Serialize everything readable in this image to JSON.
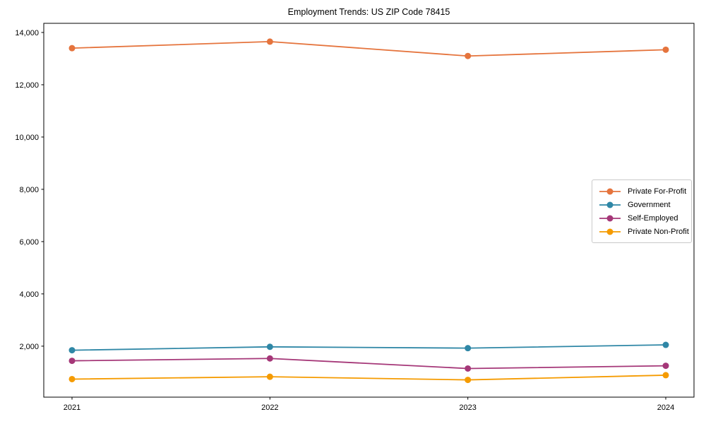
{
  "chart_data": {
    "type": "line",
    "title": "Employment Trends: US ZIP Code 78415",
    "xlabel": "",
    "ylabel": "",
    "categories": [
      "2021",
      "2022",
      "2023",
      "2024"
    ],
    "series": [
      {
        "name": "Private For-Profit",
        "color": "#E5743D",
        "values": [
          13400,
          13650,
          13100,
          13340
        ]
      },
      {
        "name": "Government",
        "color": "#2F87A6",
        "values": [
          1845,
          1975,
          1925,
          2050
        ]
      },
      {
        "name": "Self-Employed",
        "color": "#A53778",
        "values": [
          1440,
          1530,
          1145,
          1250
        ]
      },
      {
        "name": "Private Non-Profit",
        "color": "#F59B00",
        "values": [
          740,
          830,
          710,
          890
        ]
      }
    ],
    "ylim": [
      50,
      14350
    ],
    "yticks": [
      2000,
      4000,
      6000,
      8000,
      10000,
      12000,
      14000
    ],
    "ytick_labels": [
      "2,000",
      "4,000",
      "6,000",
      "8,000",
      "10,000",
      "12,000",
      "14,000"
    ],
    "xtick_labels": [
      "2021",
      "2022",
      "2023",
      "2024"
    ],
    "grid": false,
    "legend_position": "center right",
    "axis_color": "#000000"
  }
}
